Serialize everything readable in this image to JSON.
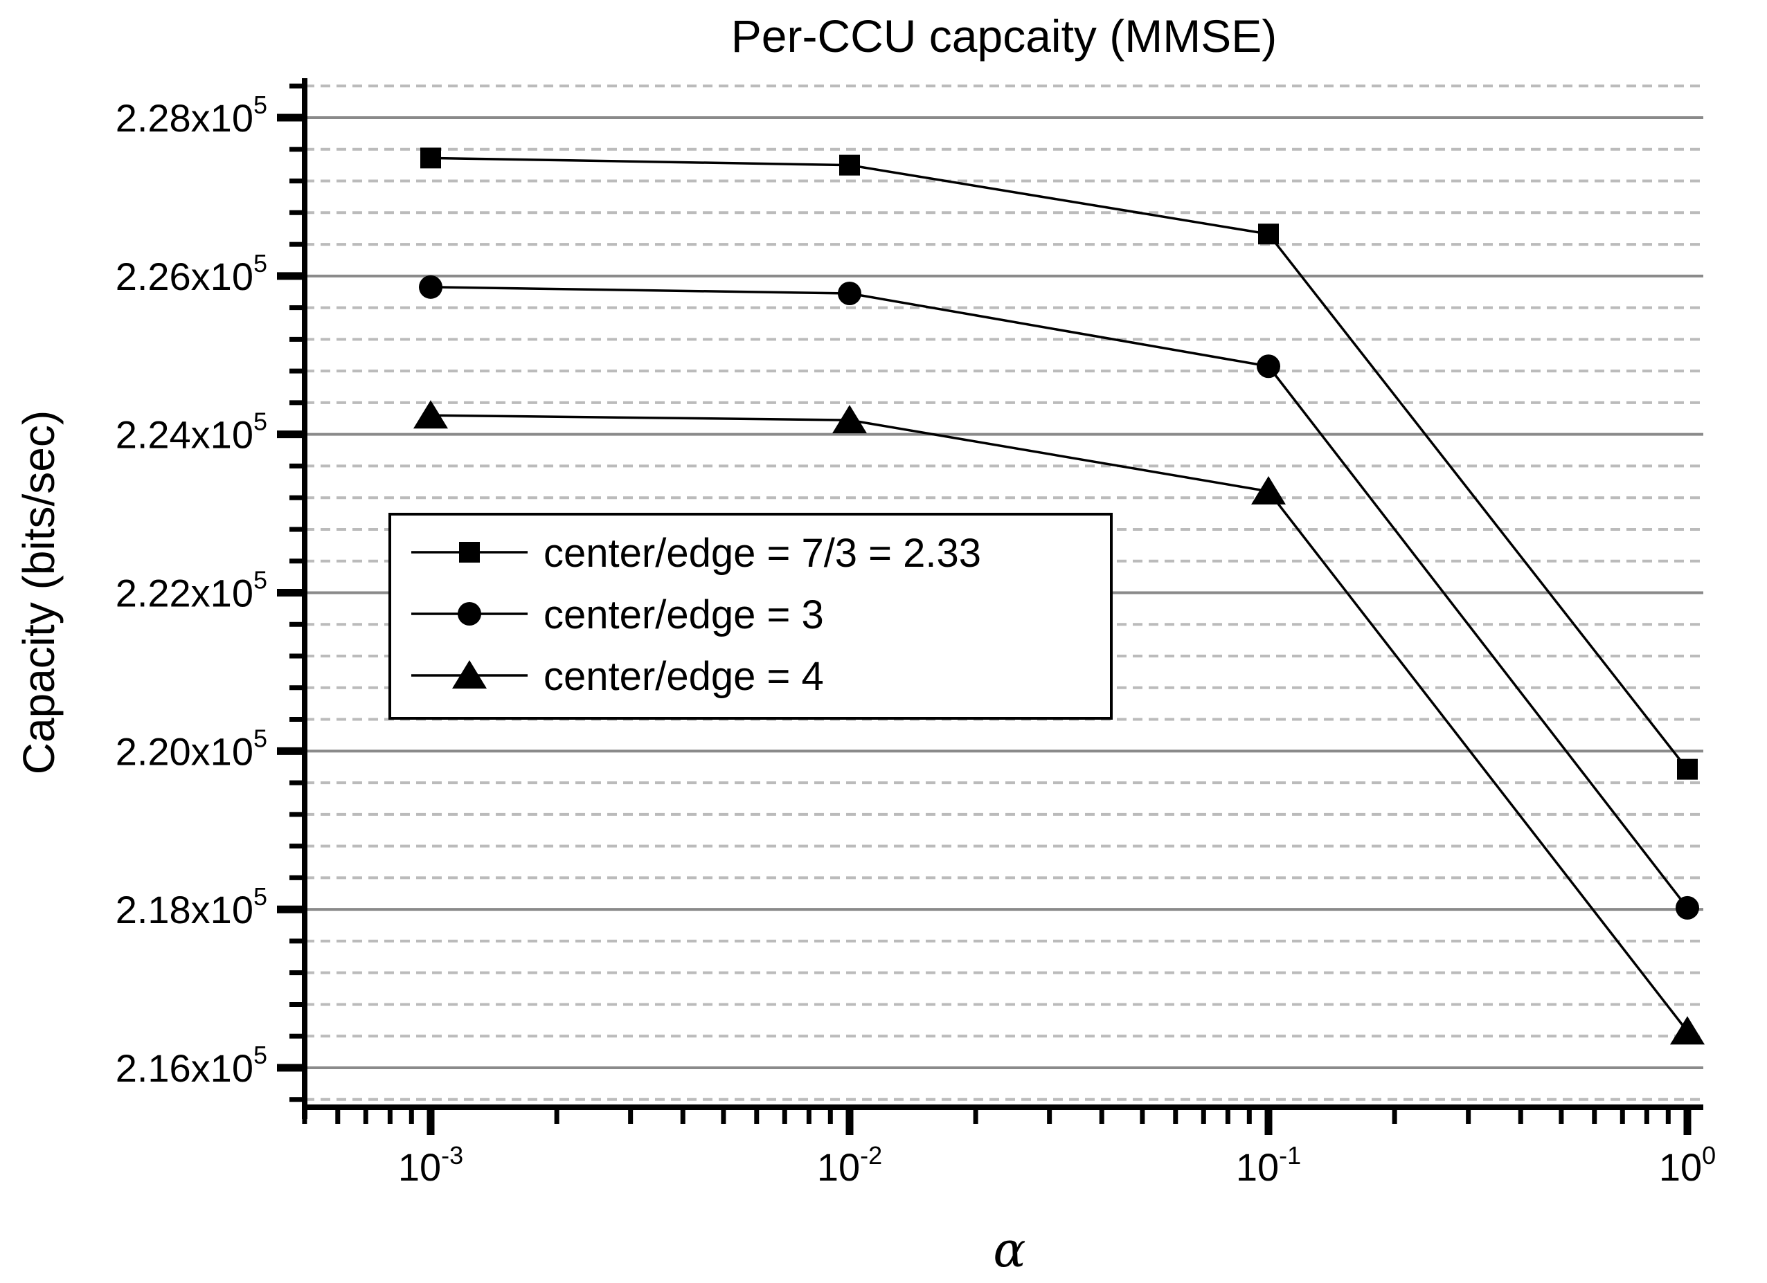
{
  "chart_data": {
    "type": "line",
    "title": "Per-CCU capcaity (MMSE)",
    "xlabel": "α",
    "ylabel": "Capacity (bits/sec)",
    "x_scale": "log",
    "y_unit": "x10^5 bits/sec",
    "x": [
      0.001,
      0.01,
      0.1,
      1
    ],
    "x_ticks": [
      {
        "base": "10",
        "exp": "-3",
        "value": 0.001
      },
      {
        "base": "10",
        "exp": "-2",
        "value": 0.01
      },
      {
        "base": "10",
        "exp": "-1",
        "value": 0.1
      },
      {
        "base": "10",
        "exp": "0",
        "value": 1
      }
    ],
    "y_ticks": [
      {
        "base": "2.28x10",
        "exp": "5",
        "value": 2.28
      },
      {
        "base": "2.26x10",
        "exp": "5",
        "value": 2.26
      },
      {
        "base": "2.24x10",
        "exp": "5",
        "value": 2.24
      },
      {
        "base": "2.22x10",
        "exp": "5",
        "value": 2.22
      },
      {
        "base": "2.20x10",
        "exp": "5",
        "value": 2.2
      },
      {
        "base": "2.18x10",
        "exp": "5",
        "value": 2.18
      },
      {
        "base": "2.16x10",
        "exp": "5",
        "value": 2.16
      }
    ],
    "y_minor_step_e5": 0.004,
    "y_minor_range_e5": [
      2.156,
      2.284
    ],
    "series": [
      {
        "name": "center/edge = 7/3 = 2.33",
        "marker": "square",
        "values_e5": [
          2.2749,
          2.274,
          2.2653,
          2.1977
        ]
      },
      {
        "name": "center/edge = 3",
        "marker": "circle",
        "values_e5": [
          2.2586,
          2.2578,
          2.2486,
          2.1802
        ]
      },
      {
        "name": "center/edge = 4",
        "marker": "triangle",
        "values_e5": [
          2.2424,
          2.2418,
          2.2328,
          2.1646
        ]
      }
    ],
    "legend_position": "inside upper-left",
    "grid": {
      "major": "solid",
      "minor": "dashed"
    },
    "colors": {
      "series": "#000000",
      "major_grid": "#8a8a8a",
      "minor_grid": "#bbbbbb",
      "axis": "#000000",
      "text": "#000000",
      "background": "#ffffff"
    }
  }
}
